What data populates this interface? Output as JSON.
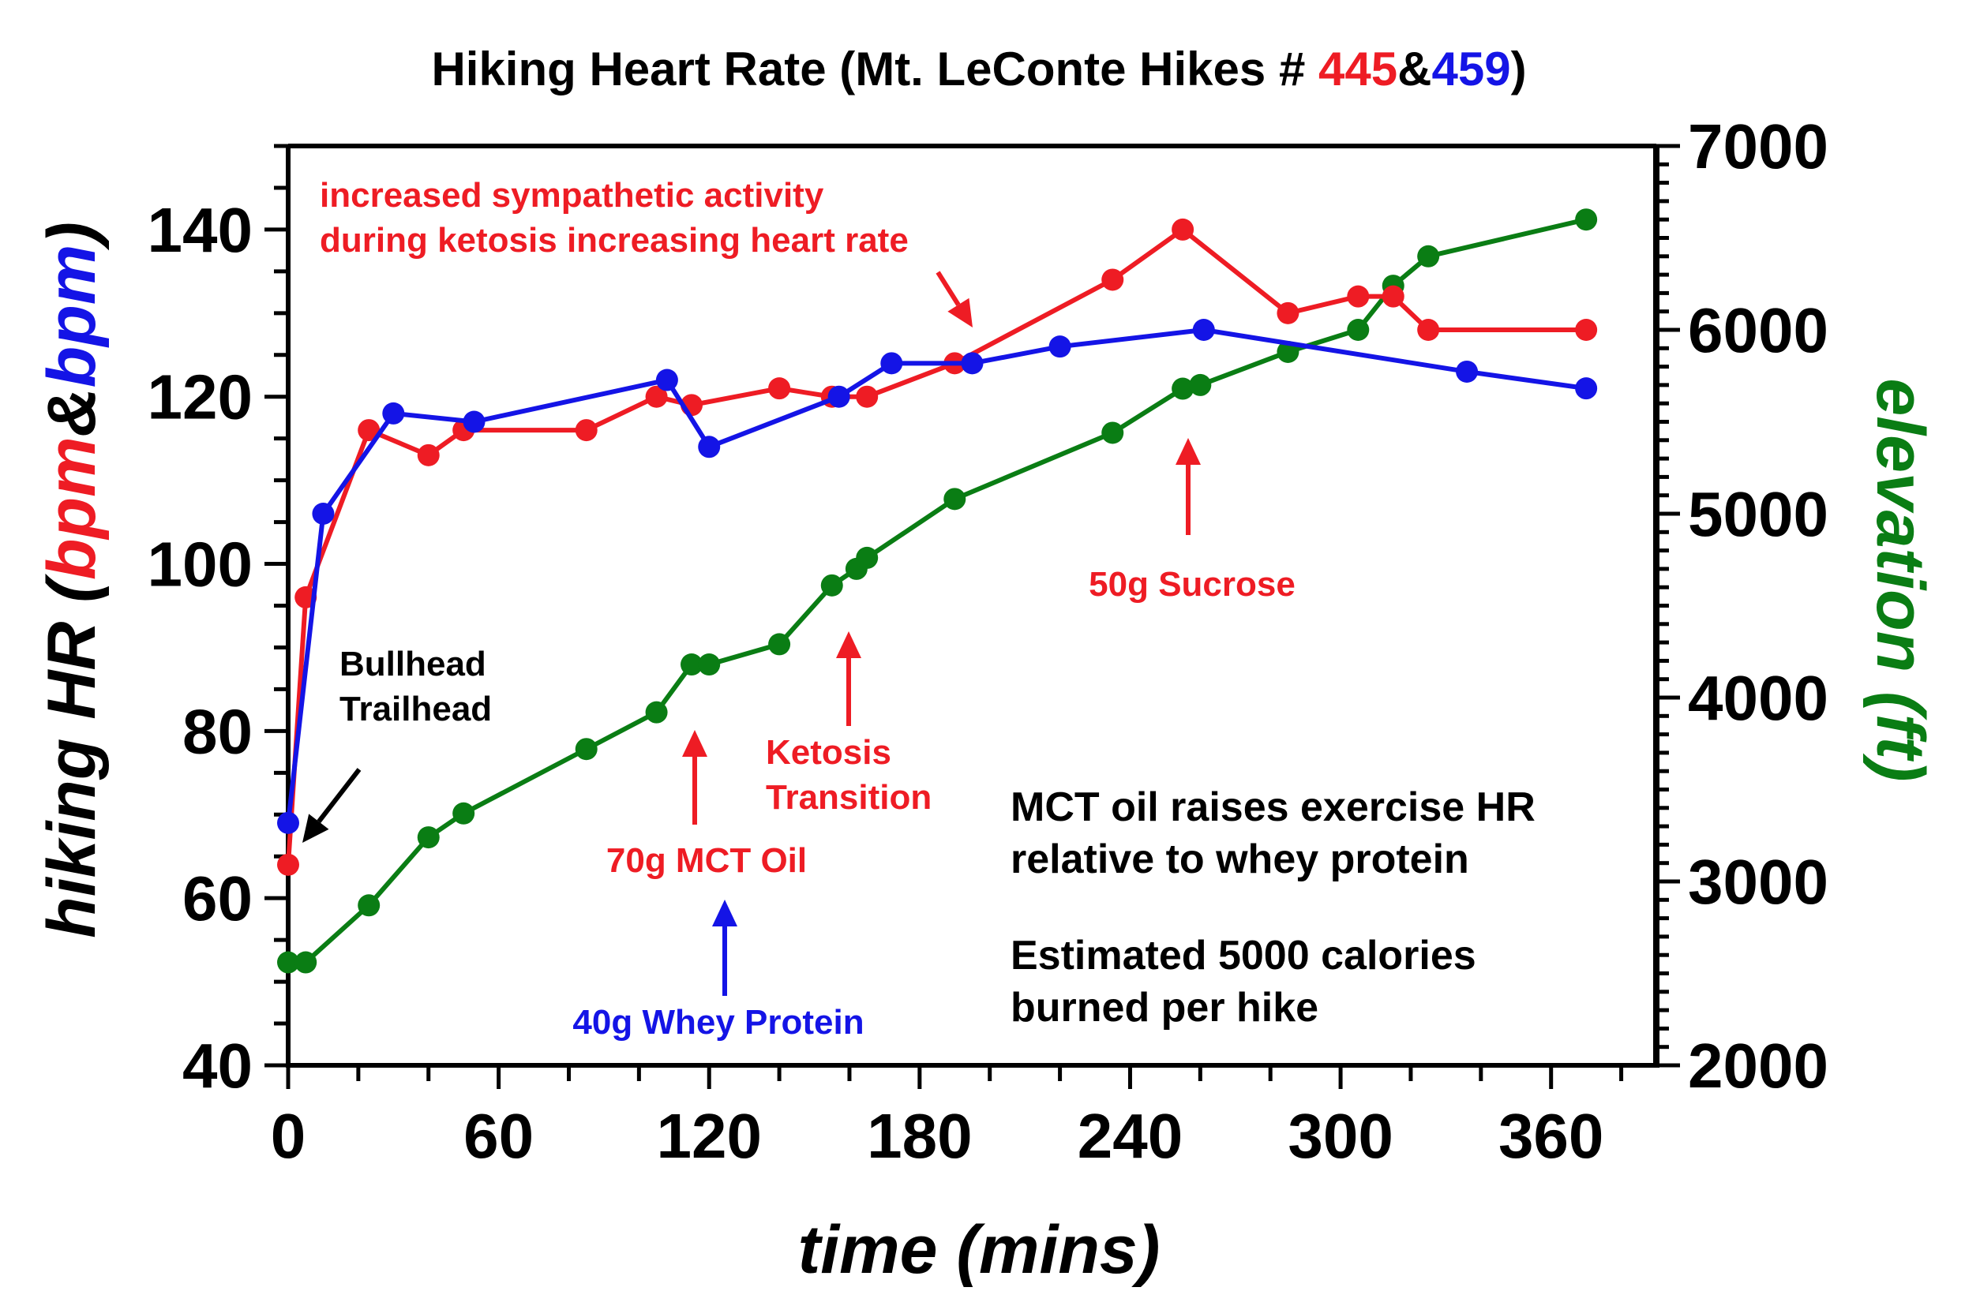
{
  "chart_data": {
    "type": "line",
    "title": {
      "prefix": "Hiking Heart Rate (Mt. LeConte Hikes # ",
      "hike_a": "445",
      "amp": "&",
      "hike_b": "459",
      "suffix": ")"
    },
    "xlabel": "time (mins)",
    "ylabel": {
      "prefix": "hiking HR (",
      "a": "bpm",
      "amp": "&",
      "b": "bpm",
      "suffix": ")"
    },
    "y2label": "elevation (ft)",
    "xlim": [
      0,
      390
    ],
    "ylim": [
      40,
      150
    ],
    "y2lim": [
      2000,
      7000
    ],
    "x_ticks": [
      "0",
      "60",
      "120",
      "180",
      "240",
      "300",
      "360"
    ],
    "y_ticks": [
      "40",
      "60",
      "80",
      "100",
      "120",
      "140"
    ],
    "y2_ticks": [
      "2000",
      "3000",
      "4000",
      "5000",
      "6000",
      "7000"
    ],
    "colors": {
      "red": "#ee1c24",
      "blue": "#1414e6",
      "green": "#0a7d14"
    },
    "series": [
      {
        "color": "#ee1c24",
        "axis": "left",
        "points": [
          [
            0,
            64
          ],
          [
            5,
            96
          ],
          [
            23,
            116
          ],
          [
            40,
            113
          ],
          [
            50,
            116
          ],
          [
            85,
            116
          ],
          [
            105,
            120
          ],
          [
            115,
            119
          ],
          [
            140,
            121
          ],
          [
            155,
            120
          ],
          [
            165,
            120
          ],
          [
            190,
            124
          ],
          [
            235,
            134
          ],
          [
            255,
            140
          ],
          [
            285,
            130
          ],
          [
            305,
            132
          ],
          [
            315,
            132
          ],
          [
            325,
            128
          ],
          [
            370,
            128
          ]
        ]
      },
      {
        "color": "#1414e6",
        "axis": "left",
        "points": [
          [
            0,
            69
          ],
          [
            10,
            106
          ],
          [
            30,
            118
          ],
          [
            53,
            117
          ],
          [
            108,
            122
          ],
          [
            120,
            114
          ],
          [
            157,
            120
          ],
          [
            172,
            124
          ],
          [
            195,
            124
          ],
          [
            220,
            126
          ],
          [
            261,
            128
          ],
          [
            336,
            123
          ],
          [
            370,
            121
          ]
        ]
      },
      {
        "color": "#0a7d14",
        "axis": "right",
        "points": [
          [
            0,
            2560
          ],
          [
            5,
            2560
          ],
          [
            23,
            2870
          ],
          [
            40,
            3240
          ],
          [
            50,
            3370
          ],
          [
            85,
            3720
          ],
          [
            105,
            3920
          ],
          [
            115,
            4180
          ],
          [
            120,
            4180
          ],
          [
            140,
            4290
          ],
          [
            155,
            4610
          ],
          [
            162,
            4700
          ],
          [
            165,
            4760
          ],
          [
            190,
            5080
          ],
          [
            235,
            5440
          ],
          [
            255,
            5680
          ],
          [
            260,
            5700
          ],
          [
            285,
            5880
          ],
          [
            305,
            6000
          ],
          [
            315,
            6240
          ],
          [
            325,
            6400
          ],
          [
            370,
            6600
          ]
        ]
      }
    ],
    "annotations": [
      {
        "lines": [
          "increased sympathetic activity",
          "during ketosis increasing heart rate"
        ],
        "color": "#ee1c24"
      },
      {
        "lines": [
          "Bullhead",
          "Trailhead"
        ],
        "color": "#000000"
      },
      {
        "lines": [
          "70g MCT Oil"
        ],
        "color": "#ee1c24"
      },
      {
        "lines": [
          "40g Whey Protein"
        ],
        "color": "#1414e6"
      },
      {
        "lines": [
          "Ketosis",
          "Transition"
        ],
        "color": "#ee1c24"
      },
      {
        "lines": [
          "50g Sucrose"
        ],
        "color": "#ee1c24"
      }
    ],
    "notes": [
      [
        "MCT oil raises exercise HR",
        "relative to whey protein"
      ],
      [
        "Estimated 5000 calories",
        "burned per hike"
      ]
    ]
  }
}
